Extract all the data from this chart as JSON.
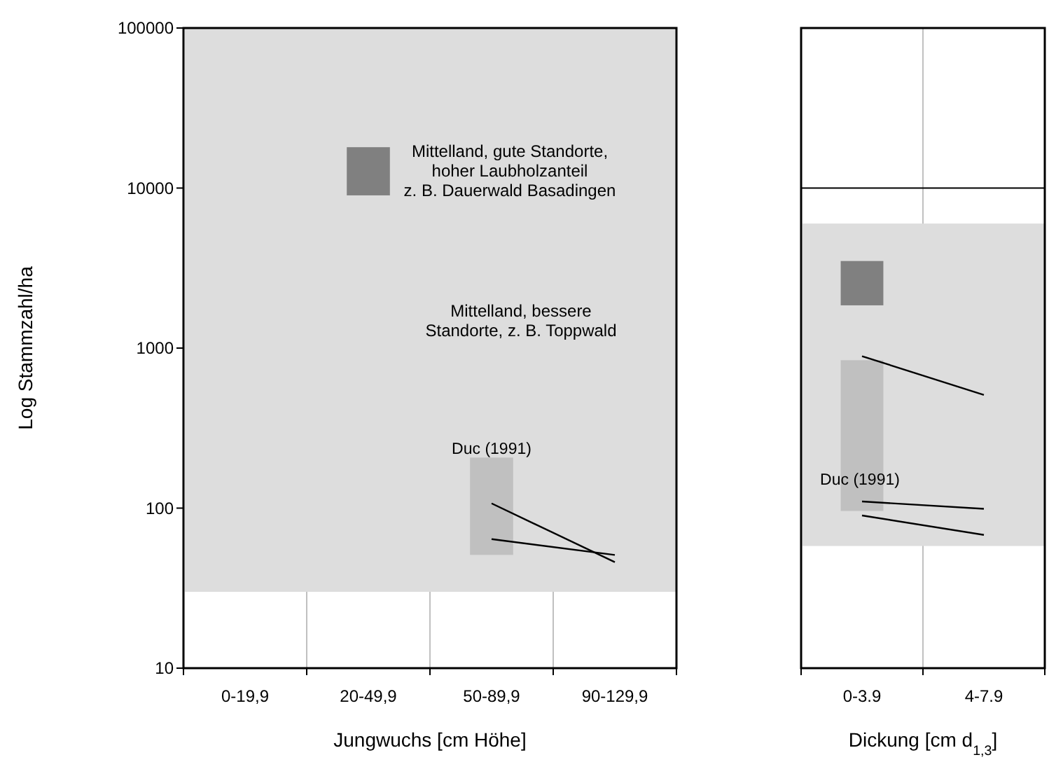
{
  "chart_data": [
    {
      "type": "line",
      "xlabel": "Jungwuchs [cm Höhe]",
      "ylabel": "Log Stammzahl/ha",
      "log": true,
      "grid": "x",
      "categories": [
        "0-19,9",
        "20-49,9",
        "50-89,9",
        "90-129,9"
      ],
      "ylim": [
        10,
        100000
      ],
      "yticks": [
        10,
        100,
        1000,
        10000,
        100000
      ],
      "bands": [
        {
          "axis": "y",
          "from": 30,
          "to": 100000,
          "color": "#dddddd"
        }
      ],
      "series": [
        {
          "type": "bar",
          "color": "#808080",
          "values": [
            null,
            9000,
            null,
            null
          ],
          "base": [
            null,
            9000,
            null,
            null
          ]
        },
        {
          "type": "bar",
          "color": "#c0c0c0",
          "values": [
            null,
            null,
            156,
            null
          ],
          "base": [
            null,
            null,
            51,
            null
          ]
        },
        {
          "color": "#000000",
          "values": [
            null,
            null,
            107,
            46
          ]
        },
        {
          "color": "#000000",
          "values": [
            null,
            null,
            64,
            51
          ]
        }
      ],
      "annotations": [
        "Mittelland, gute Standorte,\nhoher Laubholzanteil\nz. B. Dauerwald Basadingen",
        "Mittelland, bessere\nStandorte, z. B. Toppwald",
        "Duc (1991)"
      ]
    },
    {
      "type": "line",
      "xlabel": "Dickung [cm d$_{1,3}$]",
      "log": true,
      "tick_labels": "x",
      "categories": [
        "0-3.9",
        "4-7.9"
      ],
      "ylim": [
        10,
        100000
      ],
      "ref_lines": [
        {
          "axis": "y",
          "value": 10000,
          "color": "#000000"
        }
      ],
      "bands": [
        {
          "axis": "y",
          "from": 58,
          "to": 6000,
          "color": "#dddddd"
        }
      ],
      "series": [
        {
          "type": "bar",
          "color": "#808080",
          "values": [
            1650,
            null
          ],
          "base": [
            1850,
            null
          ]
        },
        {
          "type": "bar",
          "color": "#c0c0c0",
          "values": [
            744,
            null
          ],
          "base": [
            96,
            null
          ]
        },
        {
          "color": "#000000",
          "values": [
            890,
            510
          ]
        },
        {
          "color": "#000000",
          "values": [
            110,
            99
          ]
        },
        {
          "color": "#000000",
          "values": [
            90,
            68
          ]
        }
      ],
      "annotations": [
        "Duc (1991)"
      ]
    }
  ]
}
